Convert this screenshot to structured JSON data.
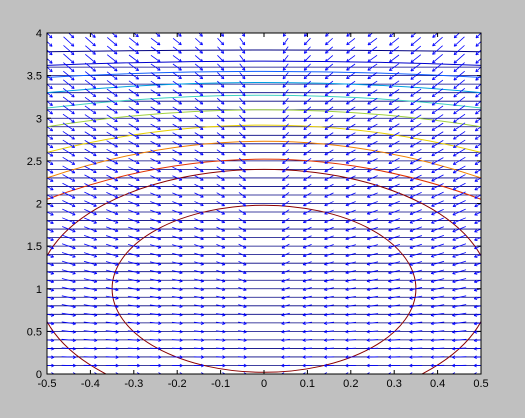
{
  "chart_data": {
    "type": "contour + quiver",
    "title": "",
    "xlabel": "",
    "ylabel": "",
    "xlim": [
      -0.5,
      0.5
    ],
    "ylim": [
      0,
      4
    ],
    "x_ticks": [
      -0.5,
      -0.4,
      -0.3,
      -0.2,
      -0.1,
      0,
      0.1,
      0.2,
      0.3,
      0.4,
      0.5
    ],
    "x_tick_labels": [
      "-0.5",
      "-0.4",
      "-0.3",
      "-0.2",
      "-0.1",
      "0",
      "0.1",
      "0.2",
      "0.3",
      "0.4",
      "0.5"
    ],
    "y_ticks": [
      0,
      0.5,
      1,
      1.5,
      2,
      2.5,
      3,
      3.5,
      4
    ],
    "y_tick_labels": [
      "0",
      "0.5",
      "1",
      "1.5",
      "2",
      "2.5",
      "3",
      "3.5",
      "4"
    ],
    "grid": false,
    "legend": "none",
    "colors": {
      "figure_background": "#c0c0c0",
      "axes_background": "#ffffff",
      "arrows": "#0000ff",
      "axes": "#000000"
    },
    "contour_levels": [
      {
        "level": "outer ellipse",
        "color": "#8b0000",
        "cx": 0,
        "cy": 1,
        "rx": 0.52,
        "ry": 1.4
      },
      {
        "level": "inner ellipse",
        "color": "#8b0000",
        "cx": 0,
        "cy": 1,
        "rx": 0.35,
        "ry": 0.98
      }
    ],
    "contour_arcs": [
      {
        "color": "#000080",
        "y_center": 3.8,
        "y_edge": 3.78
      },
      {
        "color": "#0000cd",
        "y_center": 3.67,
        "y_edge": 3.62
      },
      {
        "color": "#1060ff",
        "y_center": 3.55,
        "y_edge": 3.48
      },
      {
        "color": "#00a0e0",
        "y_center": 3.42,
        "y_edge": 3.3
      },
      {
        "color": "#40d0c0",
        "y_center": 3.27,
        "y_edge": 3.12
      },
      {
        "color": "#a0d040",
        "y_center": 3.1,
        "y_edge": 2.9
      },
      {
        "color": "#e8d000",
        "y_center": 2.92,
        "y_edge": 2.6
      },
      {
        "color": "#f08000",
        "y_center": 2.73,
        "y_edge": 2.3
      },
      {
        "color": "#e03000",
        "y_center": 2.52,
        "y_edge": 2.05
      }
    ],
    "horizontal_contours": {
      "color": "#000080",
      "y_start": 0.1,
      "y_end": 3.6,
      "step": 0.1,
      "x_from": -0.5,
      "x_to": 0.5
    },
    "quiver": {
      "x": [
        -0.5,
        -0.45,
        -0.4,
        -0.35,
        -0.3,
        -0.25,
        -0.2,
        -0.15,
        -0.1,
        -0.05,
        0,
        0.05,
        0.1,
        0.15,
        0.2,
        0.25,
        0.3,
        0.35,
        0.4,
        0.45,
        0.5
      ],
      "y_start": 0.0,
      "y_end": 4.0,
      "y_step": 0.1,
      "description": "arrows point toward x=0, tilted downward in the upper region"
    }
  }
}
